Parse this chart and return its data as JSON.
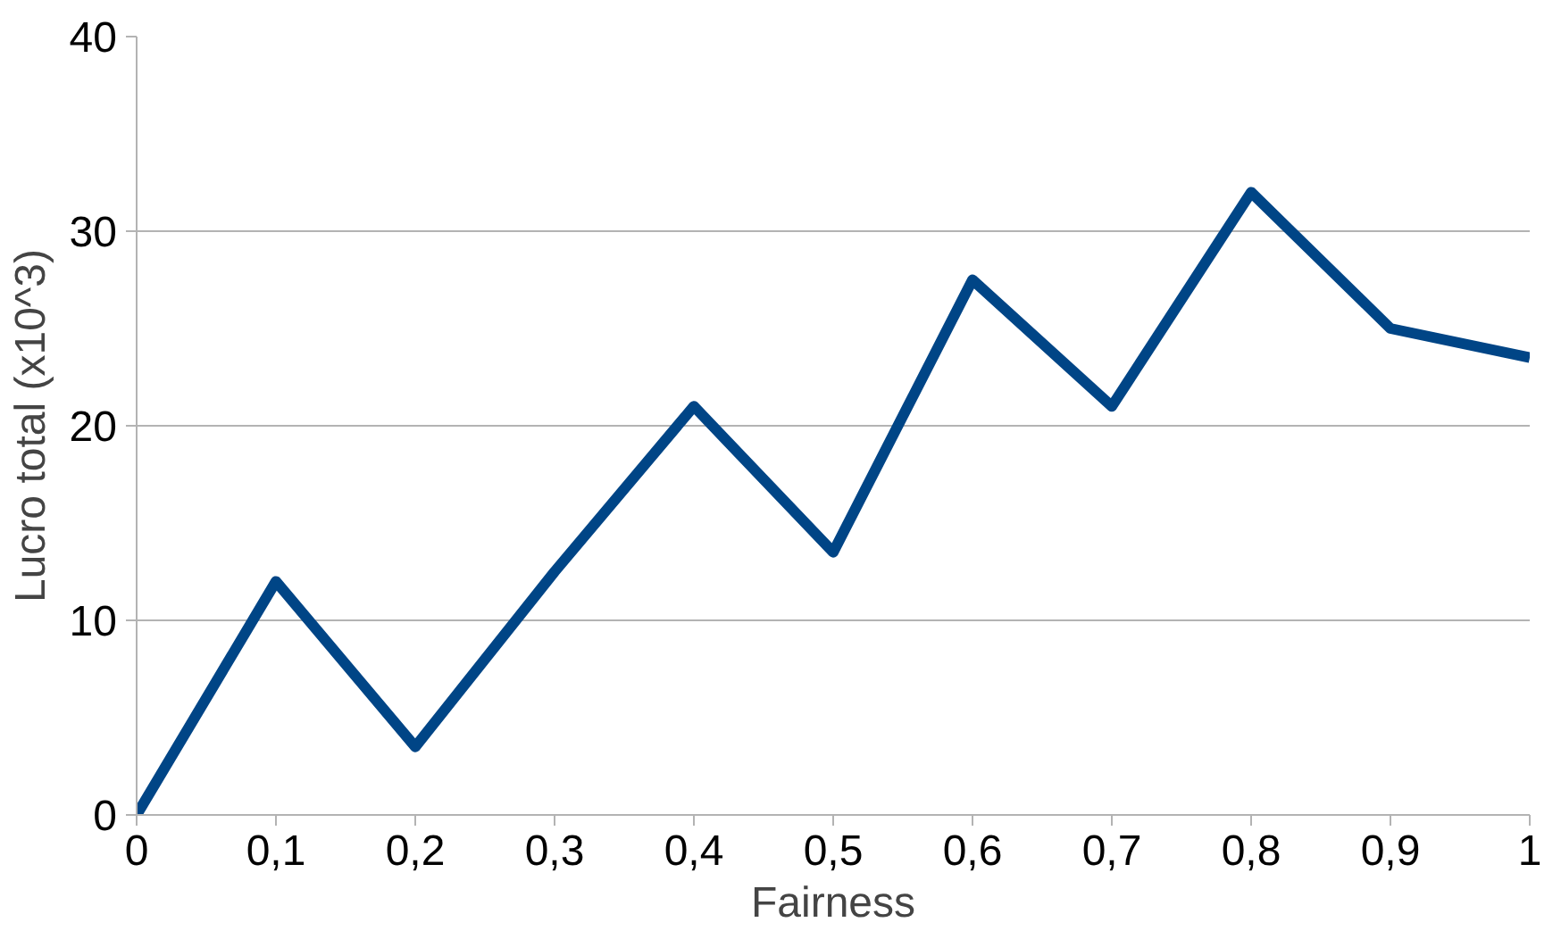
{
  "chart_data": {
    "type": "line",
    "xlabel": "Fairness",
    "ylabel": "Lucro total (x10^3)",
    "x": [
      0,
      0.1,
      0.2,
      0.3,
      0.4,
      0.5,
      0.6,
      0.7,
      0.8,
      0.9,
      1
    ],
    "series": [
      {
        "color": "#004586",
        "values": [
          0,
          12,
          3.5,
          12.5,
          21,
          13.5,
          27.5,
          21,
          32,
          25,
          23.5
        ]
      }
    ],
    "xlim": [
      0,
      1
    ],
    "ylim": [
      0,
      40
    ],
    "xticks": [
      0,
      {
        "value": 0.1,
        "label": "0,1"
      },
      {
        "value": 0.2,
        "label": "0,2"
      },
      {
        "value": 0.3,
        "label": "0,3"
      },
      {
        "value": 0.4,
        "label": "0,4"
      },
      {
        "value": 0.5,
        "label": "0,5"
      },
      {
        "value": 0.6,
        "label": "0,6"
      },
      {
        "value": 0.7,
        "label": "0,7"
      },
      {
        "value": 0.8,
        "label": "0,8"
      },
      {
        "value": 0.9,
        "label": "0,9"
      },
      1
    ],
    "yticks": [
      0,
      10,
      20,
      30,
      40
    ],
    "grid": "y",
    "marker": "none",
    "line_style": "solid"
  }
}
